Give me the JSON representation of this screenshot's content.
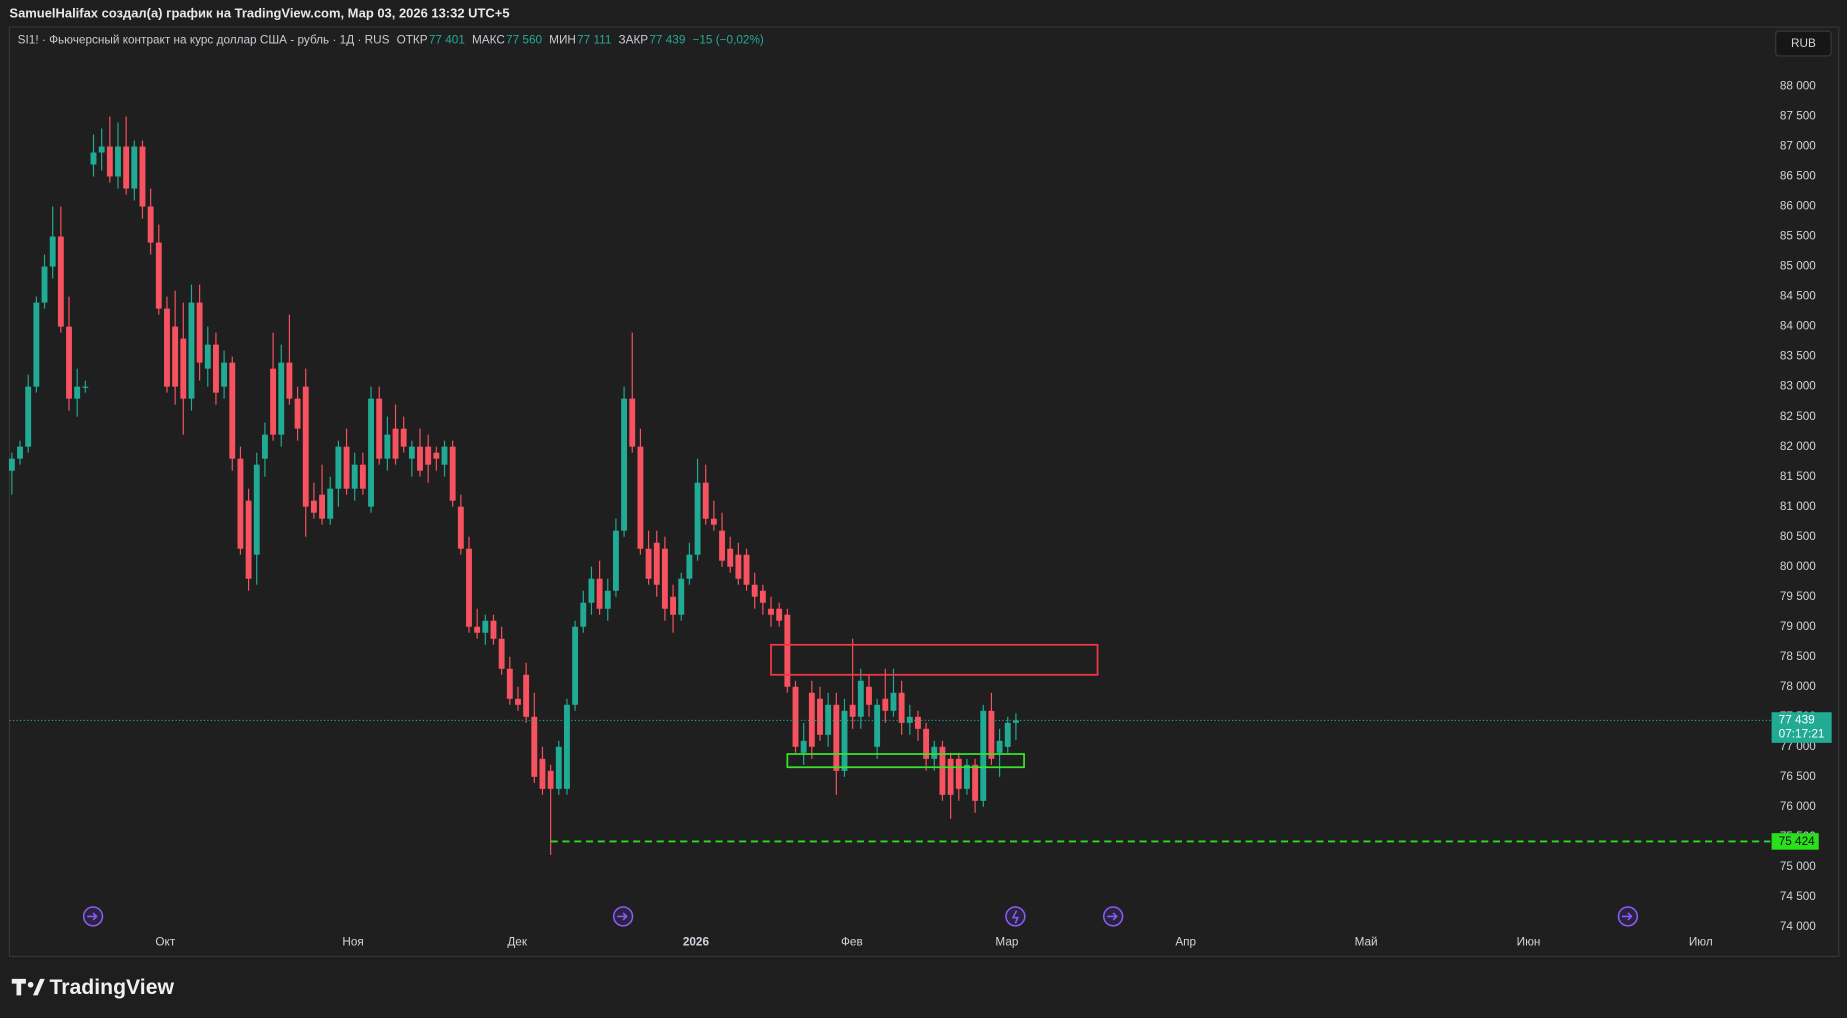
{
  "header": {
    "credit": "SamuelHalifax создал(а) график на TradingView.com, Мар 03, 2026 13:32 UTC+5"
  },
  "legend": {
    "symbol": "SI1! · Фьючерсный контракт на курс доллар США - рубль · 1Д · RUS",
    "fields": [
      {
        "label": "ОТКР",
        "value": "77 401"
      },
      {
        "label": "МАКС",
        "value": "77 560"
      },
      {
        "label": "МИН",
        "value": "77 111"
      },
      {
        "label": "ЗАКР",
        "value": "77 439"
      }
    ],
    "change": "−15 (−0,02%)"
  },
  "currency_button": "RUB",
  "footer": {
    "brand": "TradingView"
  },
  "chart_data": {
    "type": "candlestick",
    "up_color": "#22ab94",
    "down_color": "#f7525f",
    "open": [
      81600,
      81800,
      82000,
      83000,
      84400,
      85000,
      85500,
      84000,
      82800,
      83000,
      86700,
      86900,
      87000,
      86500,
      87000,
      86300,
      87000,
      86000,
      85400,
      84300,
      84000,
      83800,
      82800,
      84400,
      83300,
      83700,
      83000,
      83400,
      81800,
      81100,
      80200,
      81800,
      83300,
      82200,
      83400,
      82800,
      83000,
      81100,
      81200,
      80800,
      81300,
      82000,
      81300,
      81700,
      81000,
      82800,
      81800,
      82300,
      82300,
      81800,
      82000,
      82000,
      81900,
      81700,
      82000,
      81000,
      80300,
      79000,
      78900,
      79100,
      78800,
      78300,
      77800,
      78200,
      77500,
      76800,
      76600,
      76300,
      76300,
      77700,
      79000,
      79400,
      79800,
      79300,
      79600,
      80600,
      82800,
      82000,
      80300,
      80400,
      80300,
      79500,
      79200,
      79800,
      80200,
      81400,
      80800,
      80600,
      80300,
      80200,
      80200,
      79700,
      79600,
      79300,
      79300,
      79200,
      78000,
      76900,
      77900,
      77800,
      77200,
      77700,
      76600,
      77700,
      77500,
      78000,
      77000,
      77800,
      77600,
      77900,
      77400,
      77500,
      77300,
      76800,
      77000,
      76800,
      76800,
      76300,
      76700,
      76100,
      77600,
      76900,
      77000,
      77401
    ],
    "high": [
      81900,
      82100,
      83200,
      84500,
      85200,
      86000,
      86000,
      84500,
      83300,
      83100,
      87200,
      87300,
      87500,
      87400,
      87500,
      87100,
      87100,
      86300,
      85700,
      84500,
      84600,
      84400,
      84700,
      84700,
      84000,
      83900,
      83600,
      83500,
      82000,
      81300,
      81900,
      82400,
      83900,
      83700,
      84200,
      83000,
      83300,
      81400,
      81700,
      81500,
      82100,
      82300,
      81900,
      81900,
      83000,
      83000,
      82500,
      82700,
      82500,
      82100,
      82300,
      82200,
      82000,
      82100,
      82100,
      81200,
      80500,
      79300,
      79200,
      79200,
      79000,
      78500,
      78000,
      78400,
      77900,
      77000,
      76700,
      77100,
      77800,
      79100,
      79600,
      80000,
      80100,
      79800,
      80800,
      83000,
      83900,
      82300,
      80600,
      80600,
      80500,
      79700,
      79900,
      80400,
      81800,
      81700,
      81100,
      80900,
      80500,
      80400,
      80300,
      79900,
      79700,
      79500,
      79400,
      79300,
      78100,
      77400,
      78100,
      78000,
      77900,
      77900,
      77800,
      78800,
      78300,
      78200,
      77800,
      78300,
      78300,
      78100,
      77700,
      77600,
      77400,
      77100,
      77100,
      76900,
      76900,
      76800,
      76800,
      77700,
      77900,
      77300,
      77500,
      77560
    ],
    "low": [
      81200,
      81700,
      81900,
      82900,
      84300,
      84800,
      83900,
      82600,
      82500,
      82900,
      86500,
      86600,
      86400,
      86300,
      86200,
      86100,
      85800,
      85200,
      84200,
      82900,
      82700,
      82200,
      82600,
      83100,
      83000,
      82700,
      82800,
      81600,
      80200,
      79600,
      79700,
      81500,
      82100,
      82000,
      82700,
      82100,
      80500,
      80800,
      80700,
      80700,
      81000,
      81200,
      81100,
      81200,
      80900,
      81700,
      81600,
      81700,
      81900,
      81500,
      81500,
      81400,
      81600,
      81500,
      81000,
      80200,
      78900,
      78800,
      78700,
      78700,
      78200,
      77700,
      77600,
      77400,
      76400,
      76200,
      75200,
      76200,
      76200,
      77600,
      78900,
      79200,
      79200,
      79100,
      79500,
      80500,
      81900,
      80200,
      79700,
      79500,
      79100,
      78900,
      79100,
      79700,
      80100,
      80700,
      80600,
      80000,
      79900,
      79700,
      79600,
      79300,
      79200,
      79000,
      79000,
      77900,
      76900,
      76700,
      76800,
      77100,
      77000,
      76200,
      76500,
      77300,
      77300,
      77500,
      76800,
      77400,
      77500,
      77200,
      77200,
      77100,
      76600,
      76600,
      76100,
      75800,
      76100,
      76200,
      75900,
      76000,
      76700,
      76500,
      76900,
      77111
    ],
    "close": [
      81800,
      82000,
      83000,
      84400,
      85000,
      85500,
      84000,
      82800,
      83000,
      83000,
      86900,
      87000,
      86500,
      87000,
      86300,
      87000,
      86000,
      85400,
      84300,
      83000,
      83000,
      82800,
      84400,
      83400,
      83700,
      82900,
      83400,
      81800,
      80300,
      79800,
      81700,
      82200,
      82200,
      83400,
      82800,
      82300,
      81000,
      80900,
      80800,
      81300,
      82000,
      81300,
      81700,
      81300,
      82800,
      81800,
      82200,
      81800,
      82000,
      82000,
      81600,
      81700,
      81800,
      82000,
      81100,
      80300,
      79000,
      78900,
      79100,
      78800,
      78300,
      77800,
      77700,
      77500,
      76500,
      76300,
      76300,
      77000,
      77700,
      79000,
      79400,
      79800,
      79300,
      79600,
      80600,
      82800,
      82000,
      80300,
      79800,
      79700,
      79300,
      79200,
      79800,
      80200,
      81400,
      80800,
      80700,
      80100,
      80000,
      79800,
      79700,
      79500,
      79400,
      79200,
      79100,
      78000,
      77000,
      77100,
      77000,
      77200,
      77700,
      76600,
      77600,
      77500,
      78100,
      77700,
      77700,
      77600,
      77900,
      77400,
      77500,
      77300,
      76800,
      77000,
      76200,
      76200,
      76300,
      76700,
      76100,
      77600,
      76800,
      77100,
      77400,
      77439
    ],
    "xlim": [
      -0.3,
      215
    ],
    "xticks": [
      {
        "value": 18.8,
        "label": "Окт"
      },
      {
        "value": 41.8,
        "label": "Ноя"
      },
      {
        "value": 61.9,
        "label": "Дек"
      },
      {
        "value": 83.8,
        "label": "2026"
      },
      {
        "value": 102.9,
        "label": "Фев"
      },
      {
        "value": 121.9,
        "label": "Мар"
      },
      {
        "value": 143.8,
        "label": "Апр"
      },
      {
        "value": 165.9,
        "label": "Май"
      },
      {
        "value": 185.8,
        "label": "Июн"
      },
      {
        "value": 206.9,
        "label": "Июл"
      }
    ],
    "ylim": [
      73900,
      88950
    ],
    "yticks": [
      {
        "value": 74000,
        "label": "74 000"
      },
      {
        "value": 74500,
        "label": "74 500"
      },
      {
        "value": 75000,
        "label": "75 000"
      },
      {
        "value": 75500,
        "label": "75 500"
      },
      {
        "value": 76000,
        "label": "76 000"
      },
      {
        "value": 76500,
        "label": "76 500"
      },
      {
        "value": 77000,
        "label": "77 000"
      },
      {
        "value": 77500,
        "label": "77 500"
      },
      {
        "value": 78000,
        "label": "78 000"
      },
      {
        "value": 78500,
        "label": "78 500"
      },
      {
        "value": 79000,
        "label": "79 000"
      },
      {
        "value": 79500,
        "label": "79 500"
      },
      {
        "value": 80000,
        "label": "80 000"
      },
      {
        "value": 80500,
        "label": "80 500"
      },
      {
        "value": 81000,
        "label": "81 000"
      },
      {
        "value": 81500,
        "label": "81 500"
      },
      {
        "value": 82000,
        "label": "82 000"
      },
      {
        "value": 82500,
        "label": "82 500"
      },
      {
        "value": 83000,
        "label": "83 000"
      },
      {
        "value": 83500,
        "label": "83 500"
      },
      {
        "value": 84000,
        "label": "84 000"
      },
      {
        "value": 84500,
        "label": "84 500"
      },
      {
        "value": 85000,
        "label": "85 000"
      },
      {
        "value": 85500,
        "label": "85 500"
      },
      {
        "value": 86000,
        "label": "86 000"
      },
      {
        "value": 86500,
        "label": "86 500"
      },
      {
        "value": 87000,
        "label": "87 000"
      },
      {
        "value": 87500,
        "label": "87 500"
      },
      {
        "value": 88000,
        "label": "88 000"
      }
    ],
    "grid": false,
    "last_price": {
      "value": 77439,
      "label": "77 439",
      "countdown": "07:17:21",
      "color": "#22ab94"
    },
    "boxes": [
      {
        "x": [
          93,
          133
        ],
        "y": [
          78200,
          78700
        ],
        "color": "#f23645"
      },
      {
        "x": [
          95,
          124
        ],
        "y": [
          76660,
          76880
        ],
        "color": "#39e22b"
      }
    ],
    "level": {
      "value": 75424,
      "label": "75 424",
      "x_start": 66,
      "color": "#28e01c"
    }
  }
}
